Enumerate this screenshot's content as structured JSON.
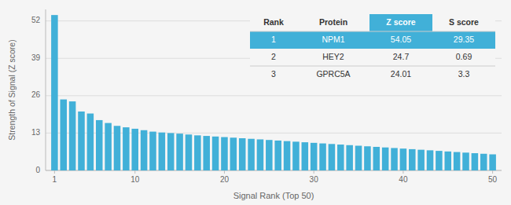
{
  "chart_data": {
    "type": "bar",
    "x": [
      1,
      2,
      3,
      4,
      5,
      6,
      7,
      8,
      9,
      10,
      11,
      12,
      13,
      14,
      15,
      16,
      17,
      18,
      19,
      20,
      21,
      22,
      23,
      24,
      25,
      26,
      27,
      28,
      29,
      30,
      31,
      32,
      33,
      34,
      35,
      36,
      37,
      38,
      39,
      40,
      41,
      42,
      43,
      44,
      45,
      46,
      47,
      48,
      49,
      50
    ],
    "values": [
      54.05,
      24.7,
      24.01,
      20.5,
      19.8,
      17.5,
      16.5,
      15.5,
      15.0,
      14.5,
      14.0,
      13.5,
      13.2,
      13.0,
      12.8,
      12.5,
      12.2,
      12.0,
      11.8,
      11.6,
      11.4,
      11.2,
      11.0,
      10.8,
      10.6,
      10.4,
      10.2,
      10.0,
      9.8,
      9.6,
      9.4,
      9.2,
      9.0,
      8.8,
      8.6,
      8.4,
      8.2,
      8.0,
      7.8,
      7.6,
      7.4,
      7.2,
      7.0,
      6.8,
      6.6,
      6.4,
      6.2,
      6.0,
      5.8,
      5.6
    ],
    "color": "#41b0d8",
    "x_label": "Signal Rank (Top 50)",
    "y_label": "Strength of Signal (Z score)",
    "xlim": [
      0,
      51
    ],
    "xticks": [
      1,
      10,
      20,
      30,
      40,
      50
    ],
    "ylim": [
      0,
      56
    ],
    "yticks": [
      0,
      13,
      26,
      39,
      52
    ],
    "grid": true,
    "table": {
      "headers": [
        "Rank",
        "Protein",
        "Z score",
        "S score"
      ],
      "rows": [
        [
          "1",
          "NPM1",
          "54.05",
          "29.35"
        ],
        [
          "2",
          "HEY2",
          "24.7",
          "0.69"
        ],
        [
          "3",
          "GPRC5A",
          "24.01",
          "3.3"
        ]
      ]
    }
  }
}
